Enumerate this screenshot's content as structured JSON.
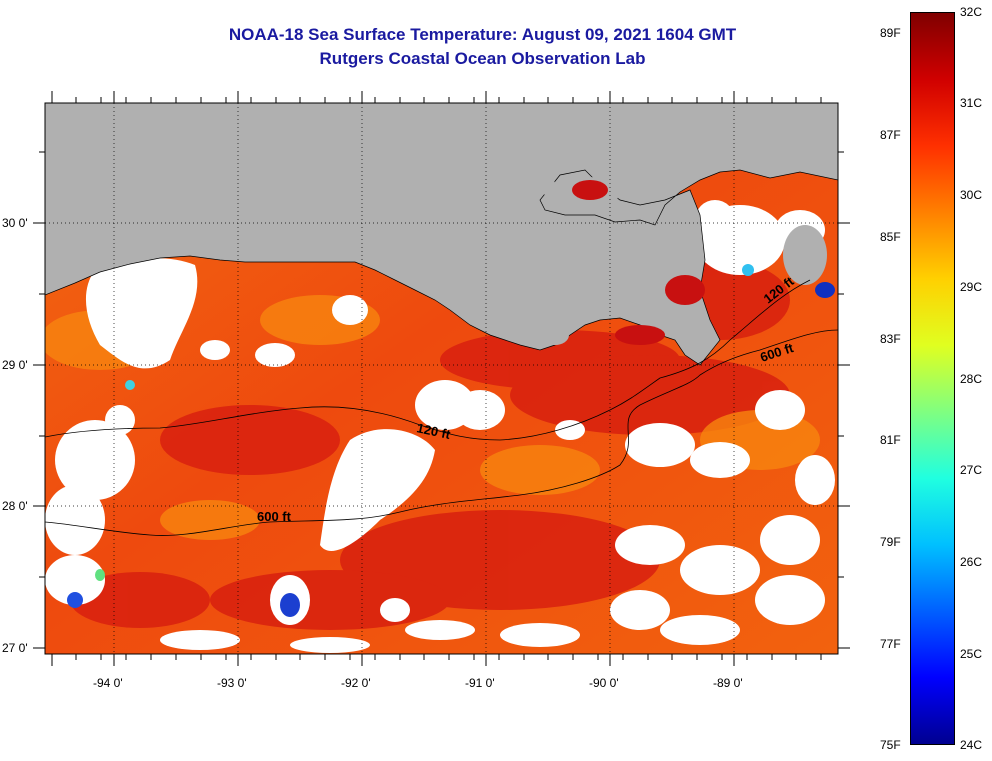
{
  "header": {
    "title": "NOAA-18 Sea Surface Temperature:  August 09, 2021 1604 GMT",
    "subtitle": "Rutgers Coastal Ocean Observation Lab"
  },
  "map": {
    "latitude_labels": [
      "30 0'",
      "29 0'",
      "28 0'",
      "27 0'"
    ],
    "longitude_labels": [
      "-94 0'",
      "-93 0'",
      "-92 0'",
      "-91 0'",
      "-90 0'",
      "-89 0'"
    ],
    "contour_labels": [
      "120 ft",
      "120 ft",
      "600 ft",
      "600 ft"
    ],
    "colors": {
      "land": "#b0b0b0",
      "cloud": "#ffffff",
      "sea_warm": "#f04a10",
      "sea_hot": "#d41616"
    }
  },
  "colorbar": {
    "celsius_labels": [
      "32C",
      "31C",
      "30C",
      "29C",
      "28C",
      "27C",
      "26C",
      "25C",
      "24C"
    ],
    "fahrenheit_labels": [
      "89F",
      "87F",
      "85F",
      "83F",
      "81F",
      "79F",
      "77F",
      "75F"
    ],
    "colors": [
      "#800000",
      "#d00000",
      "#ff3000",
      "#ff8000",
      "#ffd000",
      "#e0ff20",
      "#80ff80",
      "#20ffe0",
      "#00c0ff",
      "#0060ff",
      "#0000ff",
      "#000090"
    ]
  }
}
